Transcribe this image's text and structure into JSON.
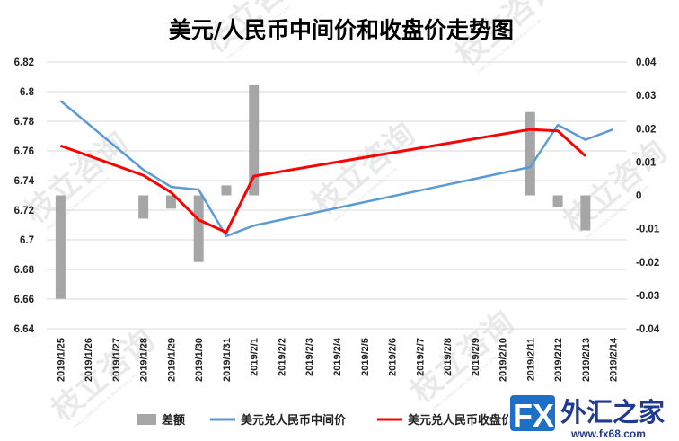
{
  "chart_data": {
    "type": "bar+line",
    "title": "美元/人民币中间价和收盘价走势图",
    "categories": [
      "2019/1/25",
      "2019/1/26",
      "2019/1/27",
      "2019/1/28",
      "2019/1/29",
      "2019/1/30",
      "2019/1/31",
      "2019/2/1",
      "2019/2/2",
      "2019/2/3",
      "2019/2/4",
      "2019/2/5",
      "2019/2/6",
      "2019/2/7",
      "2019/2/8",
      "2019/2/9",
      "2019/2/10",
      "2019/2/11",
      "2019/2/12",
      "2019/2/13",
      "2019/2/14"
    ],
    "left_axis": {
      "ylim": [
        6.64,
        6.82
      ],
      "ticks": [
        "6.64",
        "6.66",
        "6.68",
        "6.7",
        "6.72",
        "6.74",
        "6.76",
        "6.78",
        "6.8",
        "6.82"
      ]
    },
    "right_axis": {
      "ylim": [
        -0.04,
        0.04
      ],
      "ticks": [
        "-0.04",
        "-0.03",
        "-0.02",
        "-0.01",
        "0",
        "0.01",
        "0.02",
        "0.03",
        "0.04"
      ]
    },
    "grid": true,
    "legend_position": "bottom",
    "series": [
      {
        "name": "差额",
        "type": "bar",
        "axis": "right",
        "color": "#a6a6a6",
        "points": [
          {
            "x": "2019/1/25",
            "y": -0.031
          },
          {
            "x": "2019/1/28",
            "y": -0.007
          },
          {
            "x": "2019/1/29",
            "y": -0.004
          },
          {
            "x": "2019/1/30",
            "y": -0.02
          },
          {
            "x": "2019/1/31",
            "y": 0.003
          },
          {
            "x": "2019/2/1",
            "y": 0.033
          },
          {
            "x": "2019/2/11",
            "y": 0.025
          },
          {
            "x": "2019/2/12",
            "y": -0.0035
          },
          {
            "x": "2019/2/13",
            "y": -0.0105
          }
        ]
      },
      {
        "name": "美元兑人民币中间价",
        "type": "line",
        "axis": "left",
        "color": "#5b9bd5",
        "points": [
          {
            "x": "2019/1/25",
            "y": 6.7938
          },
          {
            "x": "2019/1/28",
            "y": 6.7472
          },
          {
            "x": "2019/1/29",
            "y": 6.7357
          },
          {
            "x": "2019/1/30",
            "y": 6.7339
          },
          {
            "x": "2019/1/31",
            "y": 6.7025
          },
          {
            "x": "2019/2/1",
            "y": 6.7096
          },
          {
            "x": "2019/2/11",
            "y": 6.7491
          },
          {
            "x": "2019/2/12",
            "y": 6.7775
          },
          {
            "x": "2019/2/13",
            "y": 6.7675
          },
          {
            "x": "2019/2/14",
            "y": 6.7745
          }
        ]
      },
      {
        "name": "美元兑人民币收盘价",
        "type": "line",
        "axis": "left",
        "color": "#ff0000",
        "points": [
          {
            "x": "2019/1/25",
            "y": 6.7635
          },
          {
            "x": "2019/1/28",
            "y": 6.7435
          },
          {
            "x": "2019/1/29",
            "y": 6.732
          },
          {
            "x": "2019/1/30",
            "y": 6.7135
          },
          {
            "x": "2019/1/31",
            "y": 6.705
          },
          {
            "x": "2019/2/1",
            "y": 6.743
          },
          {
            "x": "2019/2/11",
            "y": 6.7745
          },
          {
            "x": "2019/2/12",
            "y": 6.7735
          },
          {
            "x": "2019/2/13",
            "y": 6.7565
          }
        ]
      }
    ]
  },
  "legend": {
    "bar_label": "差额",
    "line1_label": "美元兑人民币中间价",
    "line2_label": "美元兑人民币收盘价"
  },
  "watermark": {
    "text": "枝立咨询",
    "subtext": "ZHILI CONSULTING SERVICE CO.,LTD"
  },
  "logo": {
    "fx": "FX",
    "cn": "外汇之家",
    "url": "www.fx68.com"
  }
}
